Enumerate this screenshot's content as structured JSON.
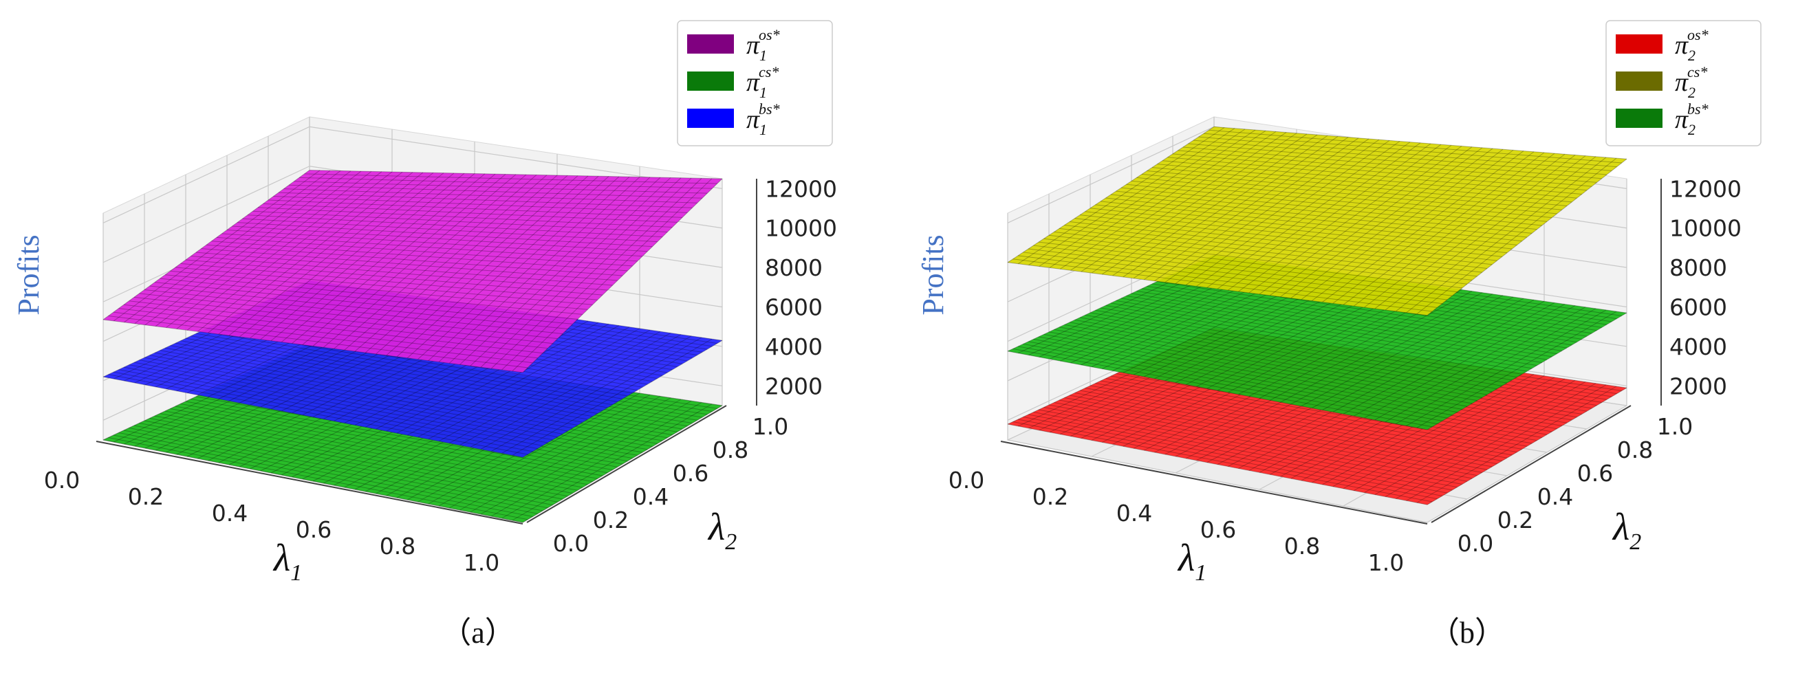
{
  "chart_data": [
    {
      "type": "surface",
      "panel_label": "（a）",
      "zlabel": "Profits",
      "xlabel": {
        "symbol": "λ",
        "sub": "1"
      },
      "ylabel": {
        "symbol": "λ",
        "sub": "2"
      },
      "xticks": [
        "0.0",
        "0.2",
        "0.4",
        "0.6",
        "0.8",
        "1.0"
      ],
      "yticks": [
        "0.0",
        "0.2",
        "0.4",
        "0.6",
        "0.8",
        "1.0"
      ],
      "zticks": [
        "2000",
        "4000",
        "6000",
        "8000",
        "10000",
        "12000"
      ],
      "xlim": [
        0,
        1
      ],
      "ylim": [
        0,
        1
      ],
      "zlim": [
        1000,
        12500
      ],
      "grid": true,
      "legend_position": "top-right",
      "series": [
        {
          "name": {
            "base": "π",
            "sub": "1",
            "sup": "os*"
          },
          "legend_color": "#800080",
          "color": "#dd22dd",
          "z_corners": {
            "x0y0": 7100,
            "x1y0": 8600,
            "x0y1": 9800,
            "x1y1": 12500
          }
        },
        {
          "name": {
            "base": "π",
            "sub": "1",
            "sup": "cs*"
          },
          "legend_color": "#0a7a0a",
          "color": "#18b818",
          "z_corners": {
            "x0y0": 1000,
            "x1y0": 1000,
            "x0y1": 1000,
            "x1y1": 1000
          }
        },
        {
          "name": {
            "base": "π",
            "sub": "1",
            "sup": "bs*"
          },
          "legend_color": "#0000ff",
          "color": "#2222ff",
          "z_corners": {
            "x0y0": 4200,
            "x1y0": 4300,
            "x0y1": 4200,
            "x1y1": 4300
          }
        }
      ]
    },
    {
      "type": "surface",
      "panel_label": "（b）",
      "zlabel": "Profits",
      "xlabel": {
        "symbol": "λ",
        "sub": "1"
      },
      "ylabel": {
        "symbol": "λ",
        "sub": "2"
      },
      "xticks": [
        "0.0",
        "0.2",
        "0.4",
        "0.6",
        "0.8",
        "1.0"
      ],
      "yticks": [
        "0.0",
        "0.2",
        "0.4",
        "0.6",
        "0.8",
        "1.0"
      ],
      "zticks": [
        "2000",
        "4000",
        "6000",
        "8000",
        "10000",
        "12000"
      ],
      "xlim": [
        0,
        1
      ],
      "ylim": [
        0,
        1
      ],
      "zlim": [
        1000,
        12500
      ],
      "grid": true,
      "legend_position": "top-right",
      "series": [
        {
          "name": {
            "base": "π",
            "sub": "2",
            "sup": "os*"
          },
          "legend_color": "#dd0000",
          "color": "#ff2222",
          "z_corners": {
            "x0y0": 1800,
            "x1y0": 1900,
            "x0y1": 1800,
            "x1y1": 1900
          }
        },
        {
          "name": {
            "base": "π",
            "sub": "2",
            "sup": "cs*"
          },
          "legend_color": "#6b6b00",
          "color": "#d8d800",
          "z_corners": {
            "x0y0": 10000,
            "x1y0": 11500,
            "x0y1": 12000,
            "x1y1": 13500
          }
        },
        {
          "name": {
            "base": "π",
            "sub": "2",
            "sup": "bs*"
          },
          "legend_color": "#0a7a0a",
          "color": "#18b818",
          "z_corners": {
            "x0y0": 5500,
            "x1y0": 5700,
            "x0y1": 5500,
            "x1y1": 5700
          }
        }
      ]
    }
  ]
}
